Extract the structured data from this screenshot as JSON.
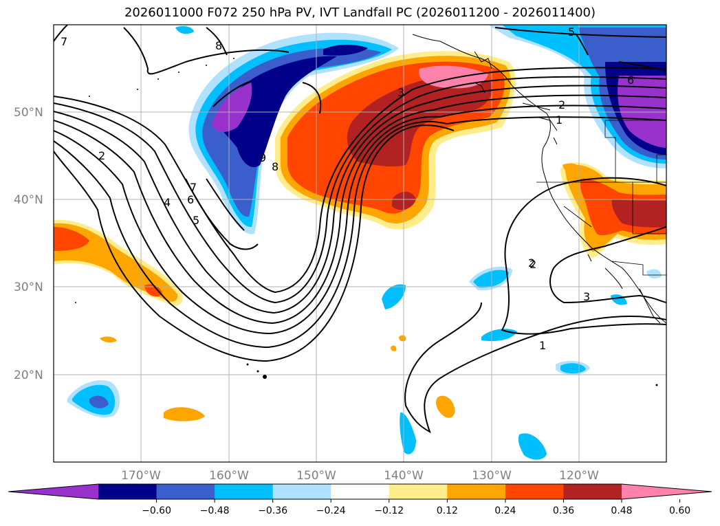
{
  "title": "2026011000 F072 250 hPa PV, IVT Landfall PC (2026011200 - 2026011400)",
  "latitudes": [
    "50°N",
    "40°N",
    "30°N",
    "20°N"
  ],
  "longitudes": [
    "170°W",
    "160°W",
    "150°W",
    "140°W",
    "130°W",
    "120°W"
  ],
  "contour_labels": [
    "7",
    "8",
    "5",
    "6",
    "2",
    "3",
    "2",
    "1",
    "2",
    "4",
    "6",
    "5",
    "7",
    "9",
    "8",
    "2",
    "3",
    "1"
  ],
  "colorbar": {
    "ticks": [
      "−0.60",
      "−0.48",
      "−0.36",
      "−0.24",
      "−0.12",
      "0.12",
      "0.24",
      "0.36",
      "0.48",
      "0.60"
    ],
    "colors": [
      "#9932cc",
      "#00008b",
      "#3a5fcd",
      "#00bfff",
      "#b0e2ff",
      "#ffffff",
      "#ffec8b",
      "#ffa500",
      "#ff4500",
      "#b22222",
      "#ff82ab"
    ]
  }
}
